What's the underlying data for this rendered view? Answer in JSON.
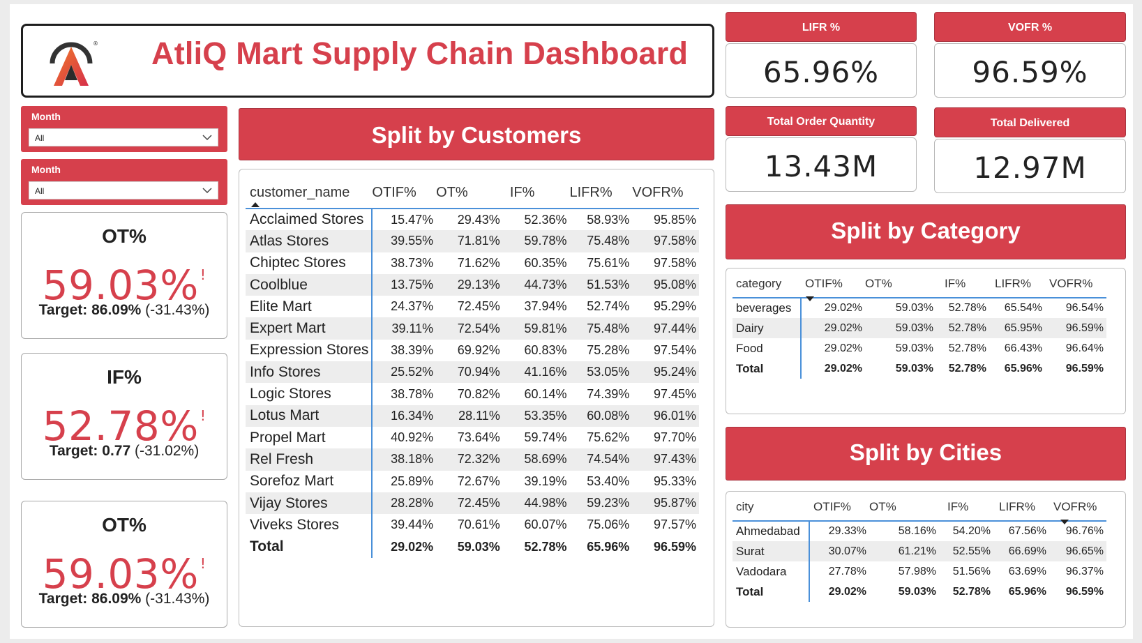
{
  "header": {
    "title": "AtliQ Mart Supply Chain Dashboard",
    "logo_mark": "®"
  },
  "slicers": [
    {
      "label": "Month",
      "value": "All"
    },
    {
      "label": "Month",
      "value": "All"
    }
  ],
  "kpi_cards": [
    {
      "title": "OT%",
      "value": "59.03%",
      "flag": "!",
      "target_label": "Target:",
      "target_value": "86.09%",
      "delta": "(-31.43%)"
    },
    {
      "title": "IF%",
      "value": "52.78%",
      "flag": "!",
      "target_label": "Target:",
      "target_value": "0.77",
      "delta": "(-31.02%)"
    },
    {
      "title": "OT%",
      "value": "59.03%",
      "flag": "!",
      "target_label": "Target:",
      "target_value": "86.09%",
      "delta": "(-31.43%)"
    }
  ],
  "top_kpis": [
    {
      "label": "LIFR %",
      "value": "65.96%"
    },
    {
      "label": "VOFR %",
      "value": "96.59%"
    },
    {
      "label": "Total Order Quantity",
      "value": "13.43M"
    },
    {
      "label": "Total Delivered",
      "value": "12.97M"
    }
  ],
  "customers": {
    "section_title": "Split by Customers",
    "columns": [
      "customer_name",
      "OTIF%",
      "OT%",
      "IF%",
      "LIFR%",
      "VOFR%"
    ],
    "rows": [
      [
        "Acclaimed Stores",
        "15.47%",
        "29.43%",
        "52.36%",
        "58.93%",
        "95.85%"
      ],
      [
        "Atlas Stores",
        "39.55%",
        "71.81%",
        "59.78%",
        "75.48%",
        "97.58%"
      ],
      [
        "Chiptec Stores",
        "38.73%",
        "71.62%",
        "60.35%",
        "75.61%",
        "97.58%"
      ],
      [
        "Coolblue",
        "13.75%",
        "29.13%",
        "44.73%",
        "51.53%",
        "95.08%"
      ],
      [
        "Elite Mart",
        "24.37%",
        "72.45%",
        "37.94%",
        "52.74%",
        "95.29%"
      ],
      [
        "Expert Mart",
        "39.11%",
        "72.54%",
        "59.81%",
        "75.48%",
        "97.44%"
      ],
      [
        "Expression Stores",
        "38.39%",
        "69.92%",
        "60.83%",
        "75.28%",
        "97.54%"
      ],
      [
        "Info Stores",
        "25.52%",
        "70.94%",
        "41.16%",
        "53.05%",
        "95.24%"
      ],
      [
        "Logic Stores",
        "38.78%",
        "70.82%",
        "60.14%",
        "74.39%",
        "97.45%"
      ],
      [
        "Lotus Mart",
        "16.34%",
        "28.11%",
        "53.35%",
        "60.08%",
        "96.01%"
      ],
      [
        "Propel Mart",
        "40.92%",
        "73.64%",
        "59.74%",
        "75.62%",
        "97.70%"
      ],
      [
        "Rel Fresh",
        "38.18%",
        "72.32%",
        "58.69%",
        "74.54%",
        "97.43%"
      ],
      [
        "Sorefoz Mart",
        "25.89%",
        "72.67%",
        "39.19%",
        "53.40%",
        "95.33%"
      ],
      [
        "Vijay Stores",
        "28.28%",
        "72.45%",
        "44.98%",
        "59.23%",
        "95.87%"
      ],
      [
        "Viveks Stores",
        "39.44%",
        "70.61%",
        "60.07%",
        "75.06%",
        "97.57%"
      ]
    ],
    "total": [
      "Total",
      "29.02%",
      "59.03%",
      "52.78%",
      "65.96%",
      "96.59%"
    ]
  },
  "category": {
    "section_title": "Split by Category",
    "columns": [
      "category",
      "OTIF%",
      "OT%",
      "IF%",
      "LIFR%",
      "VOFR%"
    ],
    "rows": [
      [
        "beverages",
        "29.02%",
        "59.03%",
        "52.78%",
        "65.54%",
        "96.54%"
      ],
      [
        "Dairy",
        "29.02%",
        "59.03%",
        "52.78%",
        "65.95%",
        "96.59%"
      ],
      [
        "Food",
        "29.02%",
        "59.03%",
        "52.78%",
        "66.43%",
        "96.64%"
      ]
    ],
    "total": [
      "Total",
      "29.02%",
      "59.03%",
      "52.78%",
      "65.96%",
      "96.59%"
    ]
  },
  "cities": {
    "section_title": "Split by Cities",
    "columns": [
      "city",
      "OTIF%",
      "OT%",
      "IF%",
      "LIFR%",
      "VOFR%"
    ],
    "rows": [
      [
        "Ahmedabad",
        "29.33%",
        "58.16%",
        "54.20%",
        "67.56%",
        "96.76%"
      ],
      [
        "Surat",
        "30.07%",
        "61.21%",
        "52.55%",
        "66.69%",
        "96.65%"
      ],
      [
        "Vadodara",
        "27.78%",
        "57.98%",
        "51.56%",
        "63.69%",
        "96.37%"
      ]
    ],
    "total": [
      "Total",
      "29.02%",
      "59.03%",
      "52.78%",
      "65.96%",
      "96.59%"
    ]
  },
  "colors": {
    "accent": "#d6404c",
    "divider": "#4a90d9"
  }
}
